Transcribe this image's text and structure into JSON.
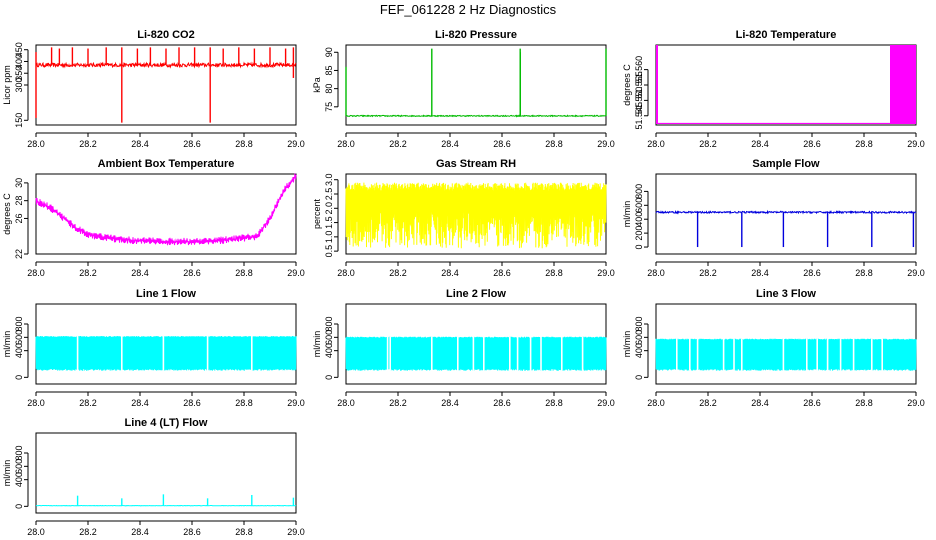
{
  "figure": {
    "title": "FEF_061228  2 Hz Diagnostics"
  },
  "chart_data": [
    {
      "id": "co2",
      "type": "line",
      "title": "Li-820 CO2",
      "xlabel": "",
      "ylabel": "Licor ppm",
      "color": "#ff0000",
      "xlim": [
        28.0,
        29.0
      ],
      "ylim": [
        130,
        470
      ],
      "xticks": [
        28.0,
        28.2,
        28.4,
        28.6,
        28.8,
        29.0
      ],
      "xtick_labels": [
        "28.0",
        "28.2",
        "28.4",
        "28.6",
        "28.8",
        "29.0"
      ],
      "yticks": [
        150,
        300,
        350,
        400,
        450
      ],
      "ytick_labels": [
        "150",
        "300",
        "350",
        "400",
        "450"
      ],
      "pattern": "baseline",
      "baseline": 385,
      "noise": 8,
      "spikes": [
        [
          28.0,
          160
        ],
        [
          28.0,
          440
        ],
        [
          28.06,
          460
        ],
        [
          28.09,
          455
        ],
        [
          28.14,
          460
        ],
        [
          28.2,
          455
        ],
        [
          28.27,
          460
        ],
        [
          28.33,
          140
        ],
        [
          28.33,
          460
        ],
        [
          28.39,
          455
        ],
        [
          28.44,
          460
        ],
        [
          28.5,
          455
        ],
        [
          28.55,
          460
        ],
        [
          28.61,
          460
        ],
        [
          28.67,
          140
        ],
        [
          28.67,
          460
        ],
        [
          28.72,
          455
        ],
        [
          28.78,
          460
        ],
        [
          28.84,
          455
        ],
        [
          28.9,
          460
        ],
        [
          28.96,
          455
        ],
        [
          28.99,
          460
        ],
        [
          28.99,
          330
        ]
      ]
    },
    {
      "id": "pressure",
      "type": "line",
      "title": "Li-820 Pressure",
      "xlabel": "",
      "ylabel": "kPa",
      "color": "#00bb00",
      "xlim": [
        28.0,
        29.0
      ],
      "ylim": [
        70,
        92
      ],
      "xticks": [
        28.0,
        28.2,
        28.4,
        28.6,
        28.8,
        29.0
      ],
      "xtick_labels": [
        "28.0",
        "28.2",
        "28.4",
        "28.6",
        "28.8",
        "29.0"
      ],
      "yticks": [
        75,
        80,
        85,
        90
      ],
      "ytick_labels": [
        "75",
        "80",
        "85",
        "90"
      ],
      "pattern": "baseline",
      "baseline": 72.5,
      "noise": 0.15,
      "spikes": [
        [
          28.0,
          86
        ],
        [
          28.33,
          91
        ],
        [
          28.67,
          91
        ],
        [
          28.67,
          90
        ],
        [
          29.0,
          91
        ]
      ]
    },
    {
      "id": "li820temp",
      "type": "line",
      "title": "Li-820 Temperature",
      "xlabel": "",
      "ylabel": "degrees C",
      "color": "#ff00ff",
      "xlim": [
        28.0,
        29.0
      ],
      "ylim": [
        51.542,
        51.568
      ],
      "xticks": [
        28.0,
        28.2,
        28.4,
        28.6,
        28.8,
        29.0
      ],
      "xtick_labels": [
        "28.0",
        "28.2",
        "28.4",
        "28.6",
        "28.8",
        "29.0"
      ],
      "yticks": [
        51.545,
        51.55,
        51.555,
        51.56
      ],
      "ytick_labels": [
        "51.545",
        "51.550",
        "51.555",
        "51.560"
      ],
      "pattern": "step",
      "baseline": 51.5425,
      "block_ranges": [
        [
          28.0,
          28.005
        ],
        [
          28.9,
          29.0
        ]
      ],
      "block_high": 51.568
    },
    {
      "id": "boxtemp",
      "type": "line",
      "title": "Ambient Box Temperature",
      "xlabel": "",
      "ylabel": "degrees C",
      "color": "#ff00ff",
      "xlim": [
        28.0,
        29.0
      ],
      "ylim": [
        22,
        31
      ],
      "xticks": [
        28.0,
        28.2,
        28.4,
        28.6,
        28.8,
        29.0
      ],
      "xtick_labels": [
        "28.0",
        "28.2",
        "28.4",
        "28.6",
        "28.8",
        "29.0"
      ],
      "yticks": [
        22,
        26,
        28,
        30
      ],
      "ytick_labels": [
        "22",
        "26",
        "28",
        "30"
      ],
      "pattern": "curve",
      "noise": 0.7,
      "curve_x": [
        28.0,
        28.05,
        28.1,
        28.15,
        28.2,
        28.3,
        28.4,
        28.5,
        28.6,
        28.7,
        28.8,
        28.85,
        28.9,
        28.95,
        29.0
      ],
      "curve_y": [
        28.0,
        27.3,
        26.2,
        25.0,
        24.2,
        23.7,
        23.5,
        23.4,
        23.4,
        23.5,
        23.8,
        24.0,
        26.0,
        29.0,
        30.8
      ]
    },
    {
      "id": "rh",
      "type": "line",
      "title": "Gas Stream RH",
      "xlabel": "",
      "ylabel": "percent",
      "color": "#ffff00",
      "xlim": [
        28.0,
        29.0
      ],
      "ylim": [
        0.4,
        3.2
      ],
      "xticks": [
        28.0,
        28.2,
        28.4,
        28.6,
        28.8,
        29.0
      ],
      "xtick_labels": [
        "28.0",
        "28.2",
        "28.4",
        "28.6",
        "28.8",
        "29.0"
      ],
      "yticks": [
        0.5,
        1.0,
        1.5,
        2.0,
        2.5,
        3.0
      ],
      "ytick_labels": [
        "0.5",
        "1.0",
        "1.5",
        "2.0",
        "2.5",
        "3.0"
      ],
      "pattern": "band",
      "band_low": 0.6,
      "band_high": 2.9
    },
    {
      "id": "sampleflow",
      "type": "line",
      "title": "Sample Flow",
      "xlabel": "",
      "ylabel": "ml/min",
      "color": "#0000dd",
      "xlim": [
        28.0,
        29.0
      ],
      "ylim": [
        -100,
        1050
      ],
      "xticks": [
        28.0,
        28.2,
        28.4,
        28.6,
        28.8,
        29.0
      ],
      "xtick_labels": [
        "28.0",
        "28.2",
        "28.4",
        "28.6",
        "28.8",
        "29.0"
      ],
      "yticks": [
        0,
        200,
        400,
        600,
        800
      ],
      "ytick_labels": [
        "0",
        "200",
        "400",
        "600",
        "800"
      ],
      "pattern": "baseline",
      "baseline": 500,
      "noise": 12,
      "spikes": [
        [
          28.16,
          0
        ],
        [
          28.33,
          0
        ],
        [
          28.49,
          0
        ],
        [
          28.66,
          0
        ],
        [
          28.83,
          0
        ],
        [
          28.99,
          0
        ]
      ]
    },
    {
      "id": "line1",
      "type": "line",
      "title": "Line 1 Flow",
      "xlabel": "",
      "ylabel": "ml/min",
      "color": "#00ffff",
      "xlim": [
        28.0,
        29.0
      ],
      "ylim": [
        -100,
        1100
      ],
      "xticks": [
        28.0,
        28.2,
        28.4,
        28.6,
        28.8,
        29.0
      ],
      "xtick_labels": [
        "28.0",
        "28.2",
        "28.4",
        "28.6",
        "28.8",
        "29.0"
      ],
      "yticks": [
        0,
        400,
        600,
        800
      ],
      "ytick_labels": [
        "0",
        "400",
        "600",
        "800"
      ],
      "pattern": "band",
      "band_low": 100,
      "band_high": 620,
      "gaps": [
        28.16,
        28.33,
        28.49,
        28.66,
        28.83
      ]
    },
    {
      "id": "line2",
      "type": "line",
      "title": "Line 2 Flow",
      "xlabel": "",
      "ylabel": "ml/min",
      "color": "#00ffff",
      "xlim": [
        28.0,
        29.0
      ],
      "ylim": [
        -100,
        1100
      ],
      "xticks": [
        28.0,
        28.2,
        28.4,
        28.6,
        28.8,
        29.0
      ],
      "xtick_labels": [
        "28.0",
        "28.2",
        "28.4",
        "28.6",
        "28.8",
        "29.0"
      ],
      "yticks": [
        0,
        400,
        600,
        800
      ],
      "ytick_labels": [
        "0",
        "400",
        "600",
        "800"
      ],
      "pattern": "band",
      "band_low": 100,
      "band_high": 610,
      "gaps": [
        28.16,
        28.17,
        28.33,
        28.43,
        28.49,
        28.53,
        28.63,
        28.66,
        28.71,
        28.75,
        28.83,
        28.91
      ]
    },
    {
      "id": "line3",
      "type": "line",
      "title": "Line 3 Flow",
      "xlabel": "",
      "ylabel": "ml/min",
      "color": "#00ffff",
      "xlim": [
        28.0,
        29.0
      ],
      "ylim": [
        -100,
        1100
      ],
      "xticks": [
        28.0,
        28.2,
        28.4,
        28.6,
        28.8,
        29.0
      ],
      "xtick_labels": [
        "28.0",
        "28.2",
        "28.4",
        "28.6",
        "28.8",
        "29.0"
      ],
      "yticks": [
        0,
        400,
        600,
        800
      ],
      "ytick_labels": [
        "0",
        "400",
        "600",
        "800"
      ],
      "pattern": "band",
      "band_low": 100,
      "band_high": 580,
      "gaps": [
        28.08,
        28.13,
        28.16,
        28.26,
        28.3,
        28.33,
        28.49,
        28.58,
        28.62,
        28.66,
        28.71,
        28.76,
        28.83,
        28.87
      ]
    },
    {
      "id": "line4",
      "type": "line",
      "title": "Line 4 (LT) Flow",
      "xlabel": "",
      "ylabel": "ml/min",
      "color": "#00ffff",
      "xlim": [
        28.0,
        29.0
      ],
      "ylim": [
        -100,
        1100
      ],
      "xticks": [
        28.0,
        28.2,
        28.4,
        28.6,
        28.8,
        29.0
      ],
      "xtick_labels": [
        "28.0",
        "28.2",
        "28.4",
        "28.6",
        "28.8",
        "29.0"
      ],
      "yticks": [
        0,
        400,
        600,
        800
      ],
      "ytick_labels": [
        "0",
        "400",
        "600",
        "800"
      ],
      "pattern": "baseline",
      "baseline": 10,
      "noise": 3,
      "spikes": [
        [
          28.16,
          160
        ],
        [
          28.33,
          120
        ],
        [
          28.49,
          180
        ],
        [
          28.66,
          120
        ],
        [
          28.83,
          170
        ],
        [
          28.99,
          130
        ]
      ]
    }
  ]
}
